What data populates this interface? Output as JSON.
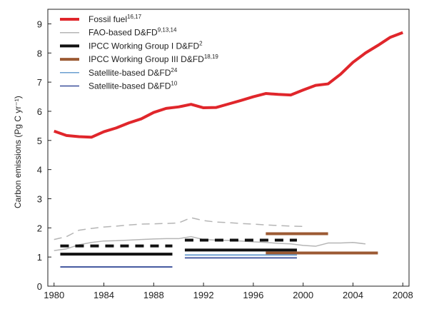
{
  "chart_data": {
    "type": "line",
    "ylabel": "Carbon emissions (Pg C yr⁻¹)",
    "xlim": [
      1979.5,
      2008.5
    ],
    "ylim": [
      0,
      9.5
    ],
    "x_ticks": [
      "1980",
      "1984",
      "1988",
      "1992",
      "1996",
      "2000",
      "2004",
      "2008"
    ],
    "y_ticks": [
      "0",
      "1",
      "2",
      "3",
      "4",
      "5",
      "6",
      "7",
      "8",
      "9"
    ],
    "legend_position": "top-left",
    "series": [
      {
        "name": "Fossil fuel",
        "ref": "16,17",
        "color": "#e0262b",
        "style": "solid",
        "points": [
          [
            1980,
            5.32
          ],
          [
            1981,
            5.17
          ],
          [
            1982,
            5.13
          ],
          [
            1983,
            5.11
          ],
          [
            1984,
            5.3
          ],
          [
            1985,
            5.43
          ],
          [
            1986,
            5.6
          ],
          [
            1987,
            5.74
          ],
          [
            1988,
            5.96
          ],
          [
            1989,
            6.1
          ],
          [
            1990,
            6.15
          ],
          [
            1991,
            6.24
          ],
          [
            1992,
            6.12
          ],
          [
            1993,
            6.13
          ],
          [
            1994,
            6.25
          ],
          [
            1995,
            6.37
          ],
          [
            1996,
            6.5
          ],
          [
            1997,
            6.61
          ],
          [
            1998,
            6.58
          ],
          [
            1999,
            6.56
          ],
          [
            2000,
            6.73
          ],
          [
            2001,
            6.89
          ],
          [
            2002,
            6.94
          ],
          [
            2003,
            7.27
          ],
          [
            2004,
            7.68
          ],
          [
            2005,
            8.0
          ],
          [
            2006,
            8.26
          ],
          [
            2007,
            8.54
          ],
          [
            2008,
            8.7
          ]
        ]
      },
      {
        "name": "FAO-based D&FD",
        "ref": "9,13,14",
        "color": "#b5b5b5",
        "style": "solid",
        "points": [
          [
            1980,
            1.22
          ],
          [
            1981,
            1.28
          ],
          [
            1982,
            1.42
          ],
          [
            1983,
            1.5
          ],
          [
            1984,
            1.55
          ],
          [
            1985,
            1.56
          ],
          [
            1986,
            1.58
          ],
          [
            1987,
            1.6
          ],
          [
            1988,
            1.62
          ],
          [
            1989,
            1.63
          ],
          [
            1990,
            1.63
          ],
          [
            1991,
            1.7
          ],
          [
            1992,
            1.6
          ],
          [
            1993,
            1.58
          ],
          [
            1994,
            1.57
          ],
          [
            1995,
            1.55
          ],
          [
            1996,
            1.52
          ],
          [
            1997,
            1.5
          ],
          [
            1998,
            1.47
          ],
          [
            1999,
            1.45
          ],
          [
            2000,
            1.4
          ],
          [
            2001,
            1.37
          ],
          [
            2002,
            1.48
          ],
          [
            2003,
            1.48
          ],
          [
            2004,
            1.5
          ],
          [
            2005,
            1.45
          ]
        ]
      },
      {
        "name": "FAO-based D&FD (dashed)",
        "color": "#b5b5b5",
        "style": "dashed",
        "points": [
          [
            1980,
            1.6
          ],
          [
            1981,
            1.7
          ],
          [
            1982,
            1.92
          ],
          [
            1983,
            1.98
          ],
          [
            1984,
            2.03
          ],
          [
            1985,
            2.06
          ],
          [
            1986,
            2.1
          ],
          [
            1987,
            2.13
          ],
          [
            1988,
            2.14
          ],
          [
            1989,
            2.15
          ],
          [
            1990,
            2.17
          ],
          [
            1991,
            2.35
          ],
          [
            1992,
            2.25
          ],
          [
            1993,
            2.2
          ],
          [
            1994,
            2.18
          ],
          [
            1995,
            2.15
          ],
          [
            1996,
            2.13
          ],
          [
            1997,
            2.1
          ],
          [
            1998,
            2.08
          ],
          [
            1999,
            2.06
          ],
          [
            2000,
            2.05
          ]
        ]
      },
      {
        "name": "IPCC Working Group I D&FD",
        "ref": "2",
        "color": "#111111",
        "style": "solid",
        "points": [
          [
            1980.5,
            1.1
          ],
          [
            1989.5,
            1.1
          ]
        ]
      },
      {
        "name": "IPCC Working Group I D&FD (dashed)",
        "color": "#111111",
        "style": "dashed",
        "points": [
          [
            1980.5,
            1.38
          ],
          [
            1989.5,
            1.38
          ]
        ]
      },
      {
        "name": "IPCC Working Group I D&FD 1990s",
        "color": "#111111",
        "style": "solid",
        "points": [
          [
            1990.5,
            1.24
          ],
          [
            1999.5,
            1.24
          ]
        ]
      },
      {
        "name": "IPCC Working Group I D&FD 1990s (dashed)",
        "color": "#111111",
        "style": "dashed",
        "points": [
          [
            1990.5,
            1.58
          ],
          [
            1999.5,
            1.58
          ]
        ]
      },
      {
        "name": "IPCC Working Group III D&FD",
        "ref": "18,19",
        "color": "#9c5a33",
        "style": "solid",
        "points": [
          [
            1997,
            1.8
          ],
          [
            2002,
            1.8
          ]
        ]
      },
      {
        "name": "IPCC Working Group III D&FD (low)",
        "color": "#9c5a33",
        "style": "solid",
        "points": [
          [
            1997,
            1.14
          ],
          [
            2006,
            1.14
          ]
        ]
      },
      {
        "name": "Satellite-based D&FD",
        "ref": "24",
        "color": "#6a9fd0",
        "style": "solid",
        "points": [
          [
            1990.5,
            1.07
          ],
          [
            1999.5,
            1.07
          ]
        ]
      },
      {
        "name": "Satellite-based D&FD (10)",
        "ref": "10",
        "color": "#3a4f9a",
        "style": "solid",
        "points": [
          [
            1980.5,
            0.66
          ],
          [
            1989.5,
            0.66
          ]
        ]
      },
      {
        "name": "Satellite-based D&FD (10) 1990s",
        "color": "#3a4f9a",
        "style": "solid",
        "points": [
          [
            1990.5,
            0.97
          ],
          [
            1999.5,
            0.97
          ]
        ]
      }
    ],
    "legend": [
      {
        "label": "Fossil fuel",
        "sup": "16,17",
        "color": "#e0262b",
        "width": 4
      },
      {
        "label": "FAO-based D&FD",
        "sup": "9,13,14",
        "color": "#b5b5b5",
        "width": 1.5
      },
      {
        "label": "IPCC Working Group I D&FD",
        "sup": "2",
        "color": "#111111",
        "width": 4
      },
      {
        "label": "IPCC Working Group III D&FD",
        "sup": "18,19",
        "color": "#9c5a33",
        "width": 4
      },
      {
        "label": "Satellite-based D&FD",
        "sup": "24",
        "color": "#6a9fd0",
        "width": 1.5
      },
      {
        "label": "Satellite-based D&FD",
        "sup": "10",
        "color": "#3a4f9a",
        "width": 1.5
      }
    ]
  }
}
